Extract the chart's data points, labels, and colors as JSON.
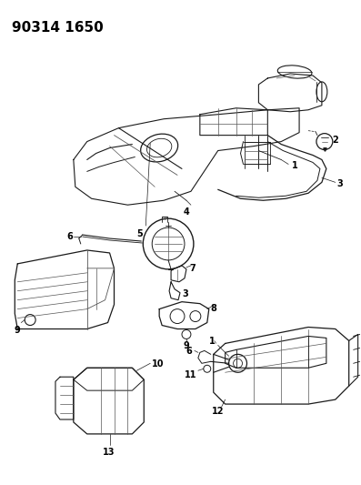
{
  "title": "90314 1650",
  "bg_color": "#ffffff",
  "fig_width": 3.97,
  "fig_height": 5.33,
  "dark": "#1a1a1a",
  "gray": "#555555",
  "lgray": "#888888"
}
